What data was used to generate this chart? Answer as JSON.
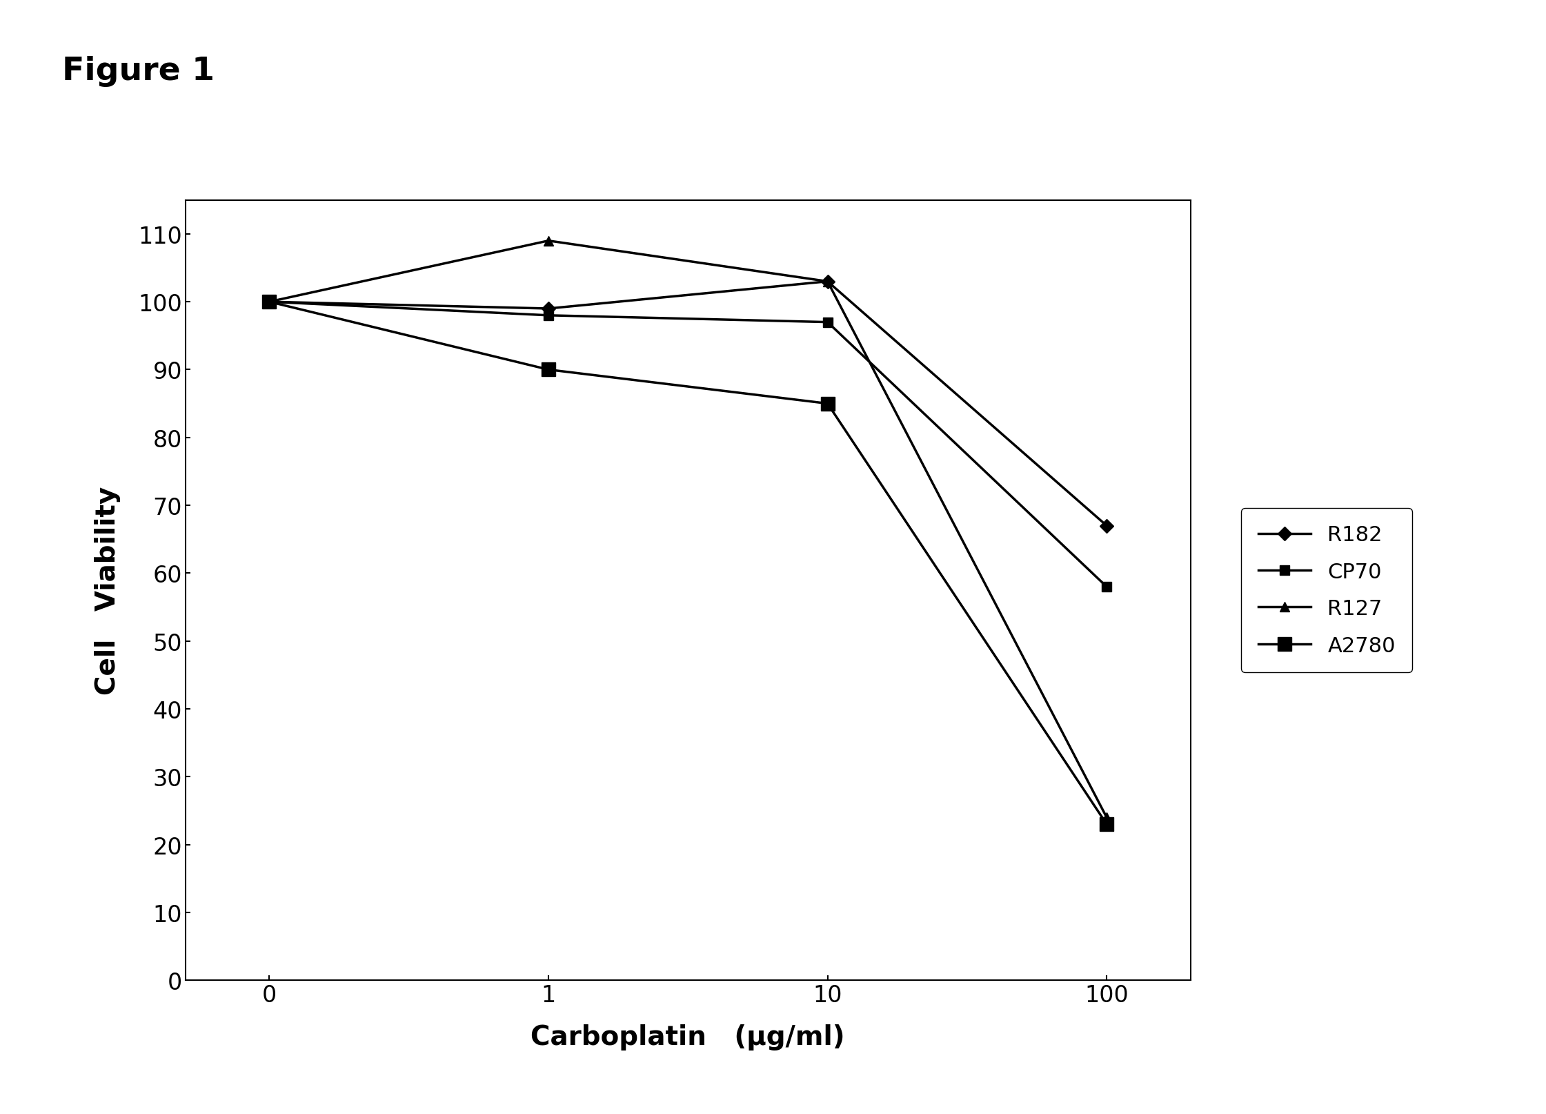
{
  "series_order": [
    "R182",
    "CP70",
    "R127",
    "A2780"
  ],
  "series": {
    "R182": {
      "x": [
        0,
        1,
        2,
        3
      ],
      "y": [
        100,
        99,
        103,
        67
      ],
      "marker": "D",
      "color": "#000000",
      "label": "R182",
      "markersize": 10,
      "linewidth": 2.5
    },
    "CP70": {
      "x": [
        0,
        1,
        2,
        3
      ],
      "y": [
        100,
        98,
        97,
        58
      ],
      "marker": "s",
      "color": "#000000",
      "label": "CP70",
      "markersize": 10,
      "linewidth": 2.5
    },
    "R127": {
      "x": [
        0,
        1,
        2,
        3
      ],
      "y": [
        100,
        109,
        103,
        24
      ],
      "marker": "^",
      "color": "#000000",
      "label": "R127",
      "markersize": 10,
      "linewidth": 2.5
    },
    "A2780": {
      "x": [
        0,
        1,
        2,
        3
      ],
      "y": [
        100,
        90,
        85,
        23
      ],
      "marker": "s",
      "color": "#000000",
      "label": "A2780",
      "markersize": 14,
      "linewidth": 2.5
    }
  },
  "xlabel": "Carboplatin   (μg/ml)",
  "ylabel": "Cell   Viability",
  "figure_title": "Figure 1",
  "xlim": [
    -0.3,
    3.3
  ],
  "ylim": [
    0,
    115
  ],
  "yticks": [
    0,
    10,
    20,
    30,
    40,
    50,
    60,
    70,
    80,
    90,
    100,
    110
  ],
  "xtick_positions": [
    0,
    1,
    2,
    3
  ],
  "xtick_labels": [
    "0",
    "1",
    "10",
    "100"
  ],
  "background_color": "#ffffff",
  "figure_width": 22.41,
  "figure_height": 16.15,
  "dpi": 100
}
